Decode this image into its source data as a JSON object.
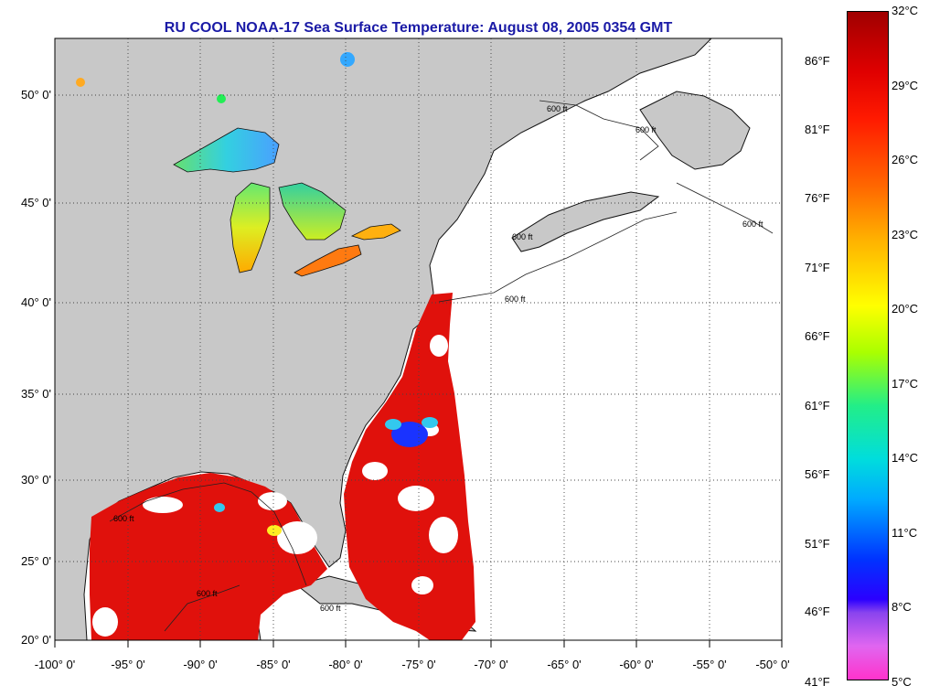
{
  "title": "RU COOL  NOAA-17  Sea Surface Temperature:  August 08, 2005 0354 GMT",
  "lat_labels": [
    "50° 0'",
    "45° 0'",
    "40° 0'",
    "35° 0'",
    "30° 0'",
    "25° 0'",
    "20° 0'"
  ],
  "lon_labels": [
    "-100° 0'",
    "-95° 0'",
    "-90° 0'",
    "-85° 0'",
    "-80° 0'",
    "-75° 0'",
    "-70° 0'",
    "-65° 0'",
    "-60° 0'",
    "-55° 0'",
    "-50° 0'"
  ],
  "isobath_labels": [
    "600 ft",
    "600 ft",
    "600 ft",
    "600 ft",
    "600 ft",
    "600 ft",
    "600 ft",
    "600 ft"
  ],
  "colorbar": {
    "fahrenheit": [
      "86°F",
      "81°F",
      "76°F",
      "71°F",
      "66°F",
      "61°F",
      "56°F",
      "51°F",
      "46°F",
      "41°F"
    ],
    "celsius": [
      "32°C",
      "29°C",
      "26°C",
      "23°C",
      "20°C",
      "17°C",
      "14°C",
      "11°C",
      "8°C",
      "5°C"
    ]
  },
  "colors": {
    "land": "#c8c8c8",
    "title": "#1a1aa6",
    "warm_sst": "#e0110c",
    "lake_sst": "#33c8ee"
  }
}
